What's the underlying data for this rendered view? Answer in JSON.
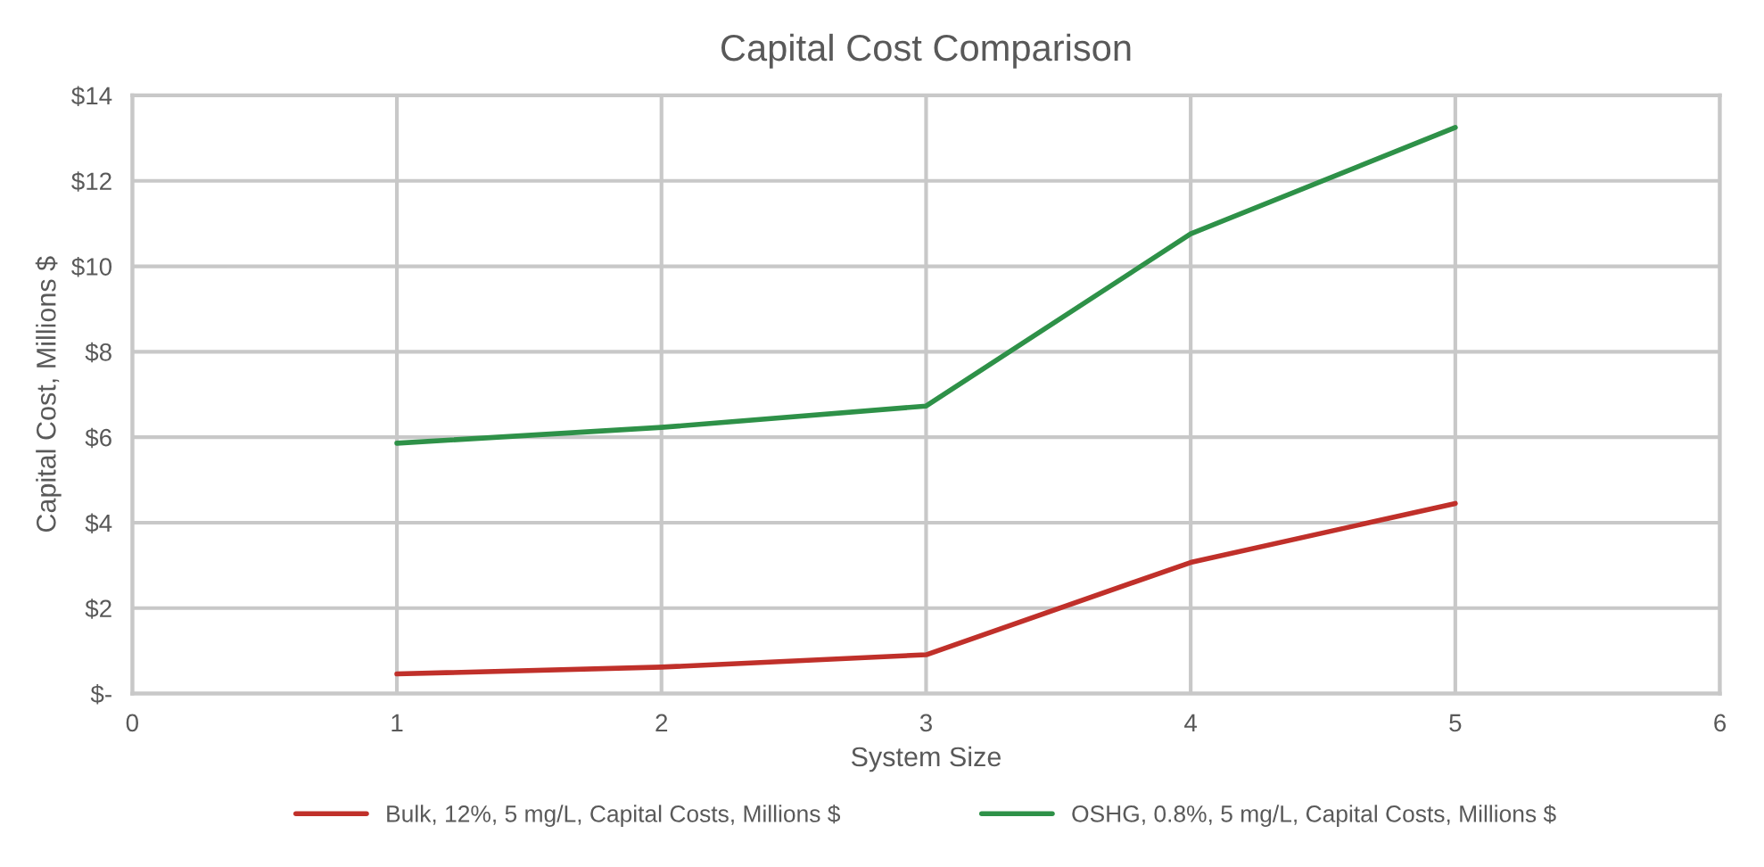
{
  "chart_data": {
    "type": "line",
    "title": "Capital Cost Comparison",
    "xlabel": "System Size",
    "ylabel": "Capital Cost, Millions $",
    "x": [
      1,
      2,
      3,
      4,
      5
    ],
    "series": [
      {
        "name": "Bulk, 12%, 5 mg/L, Capital Costs, Millions $",
        "color": "#c0302a",
        "values": [
          0.46,
          0.62,
          0.91,
          3.07,
          4.45
        ]
      },
      {
        "name": "OSHG, 0.8%, 5 mg/L, Capital Costs, Millions $",
        "color": "#2e9148",
        "values": [
          5.86,
          6.23,
          6.73,
          10.76,
          13.25
        ]
      }
    ],
    "xlim": [
      0,
      6
    ],
    "xticks": [
      0,
      1,
      2,
      3,
      4,
      5,
      6
    ],
    "ylim": [
      0,
      14
    ],
    "yticks": [
      {
        "value": 0,
        "label": "$-"
      },
      {
        "value": 2,
        "label": "$2"
      },
      {
        "value": 4,
        "label": "$4"
      },
      {
        "value": 6,
        "label": "$6"
      },
      {
        "value": 8,
        "label": "$8"
      },
      {
        "value": 10,
        "label": "$10"
      },
      {
        "value": 12,
        "label": "$12"
      },
      {
        "value": 14,
        "label": "$14"
      }
    ],
    "grid": true,
    "legend": "bottom",
    "marker": "none",
    "line_style": "solid"
  }
}
